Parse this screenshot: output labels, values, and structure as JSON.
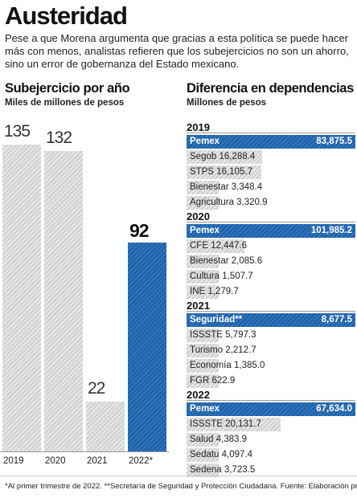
{
  "title": "Austeridad",
  "intro": "Pese a que Morena argumenta que gracias a esta política se puede hacer más con menos, analistas refieren que los subejercicios no son un ahorro, sino un error de gobernanza del Estado mexicano.",
  "colors": {
    "accent": "#2468b0",
    "bar_gray": "#d9d9d9"
  },
  "chart_data": [
    {
      "type": "bar",
      "title": "Subejercicio por año",
      "subtitle": "Miles de millones de pesos",
      "categories": [
        "2019",
        "2020",
        "2021",
        "2022*"
      ],
      "values": [
        135,
        132,
        22,
        92
      ],
      "highlight": "2022*",
      "ylim": [
        0,
        135
      ],
      "grid": false
    },
    {
      "type": "bar",
      "orientation": "horizontal",
      "title": "Diferencia en dependencias",
      "subtitle": "Millones de pesos",
      "groups": [
        {
          "year": "2019",
          "items": [
            {
              "label": "Pemex",
              "value": "83,875.5",
              "num": 83875.5,
              "top": true
            },
            {
              "label": "Segob",
              "value": "16,288.4",
              "num": 16288.4
            },
            {
              "label": "STPS",
              "value": "16,105.7",
              "num": 16105.7
            },
            {
              "label": "Bienestar",
              "value": "3,348.4",
              "num": 3348.4
            },
            {
              "label": "Agricultura",
              "value": "3,320.9",
              "num": 3320.9
            }
          ]
        },
        {
          "year": "2020",
          "items": [
            {
              "label": "Pemex",
              "value": "101,985.2",
              "num": 101985.2,
              "top": true
            },
            {
              "label": "CFE",
              "value": "12,447.6",
              "num": 12447.6
            },
            {
              "label": "Bienestar",
              "value": "2,085.6",
              "num": 2085.6
            },
            {
              "label": "Cultura",
              "value": "1,507.7",
              "num": 1507.7
            },
            {
              "label": "INE",
              "value": "1,279.7",
              "num": 1279.7
            }
          ]
        },
        {
          "year": "2021",
          "items": [
            {
              "label": "Seguridad**",
              "value": "8,677.5",
              "num": 8677.5,
              "top": true
            },
            {
              "label": "ISSSTE",
              "value": "5,797.3",
              "num": 5797.3
            },
            {
              "label": "Turismo",
              "value": "2,212.7",
              "num": 2212.7
            },
            {
              "label": "Economía",
              "value": "1,385.0",
              "num": 1385.0
            },
            {
              "label": "FGR",
              "value": "622.9",
              "num": 622.9
            }
          ]
        },
        {
          "year": "2022",
          "items": [
            {
              "label": "Pemex",
              "value": "67,634.0",
              "num": 67634.0,
              "top": true
            },
            {
              "label": "ISSSTE",
              "value": "20,131.7",
              "num": 20131.7
            },
            {
              "label": "Salud",
              "value": "4,383.9",
              "num": 4383.9
            },
            {
              "label": "Sedatu",
              "value": "4,097.4",
              "num": 4097.4
            },
            {
              "label": "Sedena",
              "value": "3,723.5",
              "num": 3723.5
            }
          ]
        }
      ]
    }
  ],
  "footnote": "*Al primer trimestre de 2022. **Secretaría de Seguridad y Protección Ciudadana. Fuente: Elaboración propia."
}
